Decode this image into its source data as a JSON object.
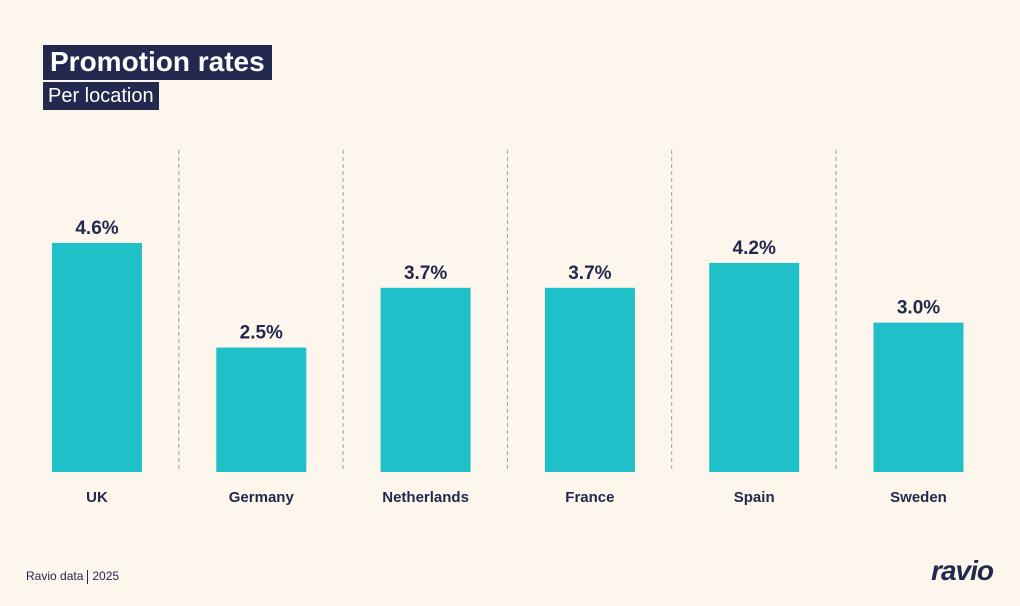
{
  "chart_data": {
    "type": "bar",
    "title": "Promotion rates",
    "subtitle": "Per location",
    "categories": [
      "UK",
      "Germany",
      "Netherlands",
      "France",
      "Spain",
      "Sweden"
    ],
    "values": [
      4.6,
      2.5,
      3.7,
      3.7,
      4.2,
      3.0
    ],
    "data_labels": [
      "4.6%",
      "2.5%",
      "3.7%",
      "3.7%",
      "4.2%",
      "3.0%"
    ],
    "ylim": [
      0,
      4.6
    ],
    "grid": false,
    "bar_color": "#20c0c8",
    "text_color": "#23284f"
  },
  "footer": {
    "source": "Ravio data",
    "year": "2025",
    "logo": "ravio"
  }
}
